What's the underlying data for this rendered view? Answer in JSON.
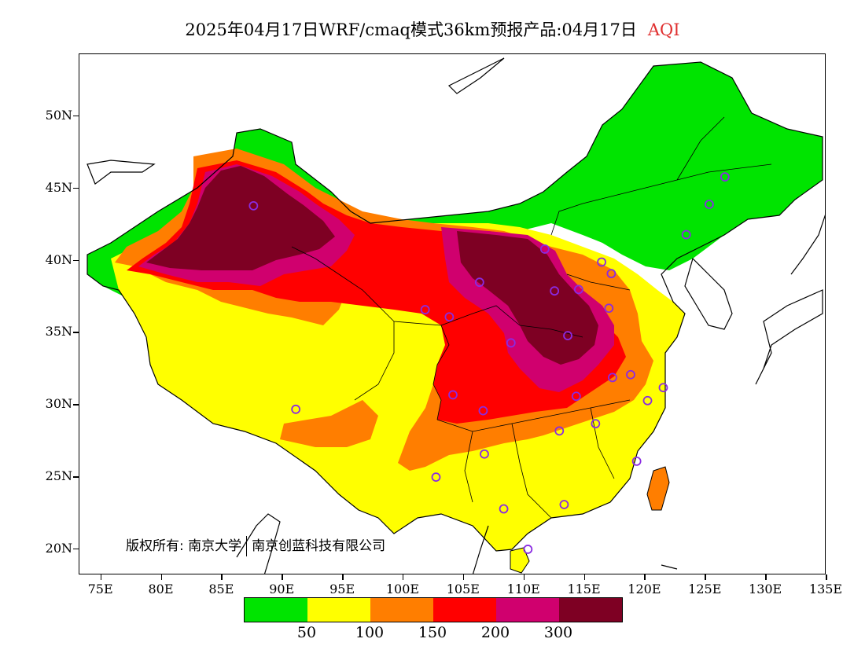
{
  "title": {
    "main": "2025年04月17日WRF/cmaq模式36km预报产品:04月17日",
    "product": "AQI"
  },
  "map": {
    "lat_labels": [
      "50N",
      "45N",
      "40N",
      "35N",
      "30N",
      "25N",
      "20N"
    ],
    "lon_labels": [
      "75E",
      "80E",
      "85E",
      "90E",
      "95E",
      "100E",
      "105E",
      "110E",
      "115E",
      "120E",
      "125E",
      "130E",
      "135E"
    ],
    "copyright": {
      "part1": "版权所有: 南京大学",
      "part2": "南京创蓝科技有限公司"
    },
    "city_markers": [
      {
        "lon": 87.6,
        "lat": 43.8
      },
      {
        "lon": 91.1,
        "lat": 29.7
      },
      {
        "lon": 101.8,
        "lat": 36.6
      },
      {
        "lon": 103.8,
        "lat": 36.1
      },
      {
        "lon": 104.1,
        "lat": 30.7
      },
      {
        "lon": 106.3,
        "lat": 38.5
      },
      {
        "lon": 106.6,
        "lat": 29.6
      },
      {
        "lon": 106.7,
        "lat": 26.6
      },
      {
        "lon": 102.7,
        "lat": 25.0
      },
      {
        "lon": 108.9,
        "lat": 34.3
      },
      {
        "lon": 108.3,
        "lat": 22.8
      },
      {
        "lon": 110.3,
        "lat": 20.0
      },
      {
        "lon": 111.7,
        "lat": 40.8
      },
      {
        "lon": 112.5,
        "lat": 37.9
      },
      {
        "lon": 113.3,
        "lat": 23.1
      },
      {
        "lon": 112.9,
        "lat": 28.2
      },
      {
        "lon": 113.6,
        "lat": 34.8
      },
      {
        "lon": 114.3,
        "lat": 30.6
      },
      {
        "lon": 114.5,
        "lat": 38.0
      },
      {
        "lon": 115.9,
        "lat": 28.7
      },
      {
        "lon": 116.4,
        "lat": 39.9
      },
      {
        "lon": 117.2,
        "lat": 39.1
      },
      {
        "lon": 117.0,
        "lat": 36.7
      },
      {
        "lon": 117.3,
        "lat": 31.9
      },
      {
        "lon": 118.8,
        "lat": 32.1
      },
      {
        "lon": 119.3,
        "lat": 26.1
      },
      {
        "lon": 120.2,
        "lat": 30.3
      },
      {
        "lon": 121.5,
        "lat": 31.2
      },
      {
        "lon": 123.4,
        "lat": 41.8
      },
      {
        "lon": 125.3,
        "lat": 43.9
      },
      {
        "lon": 126.6,
        "lat": 45.8
      }
    ]
  },
  "legend": {
    "colors": [
      "#00e400",
      "#ffff00",
      "#ff7e00",
      "#ff0000",
      "#d0006e",
      "#7e0023"
    ],
    "labels": [
      "50",
      "100",
      "150",
      "200",
      "300"
    ]
  }
}
